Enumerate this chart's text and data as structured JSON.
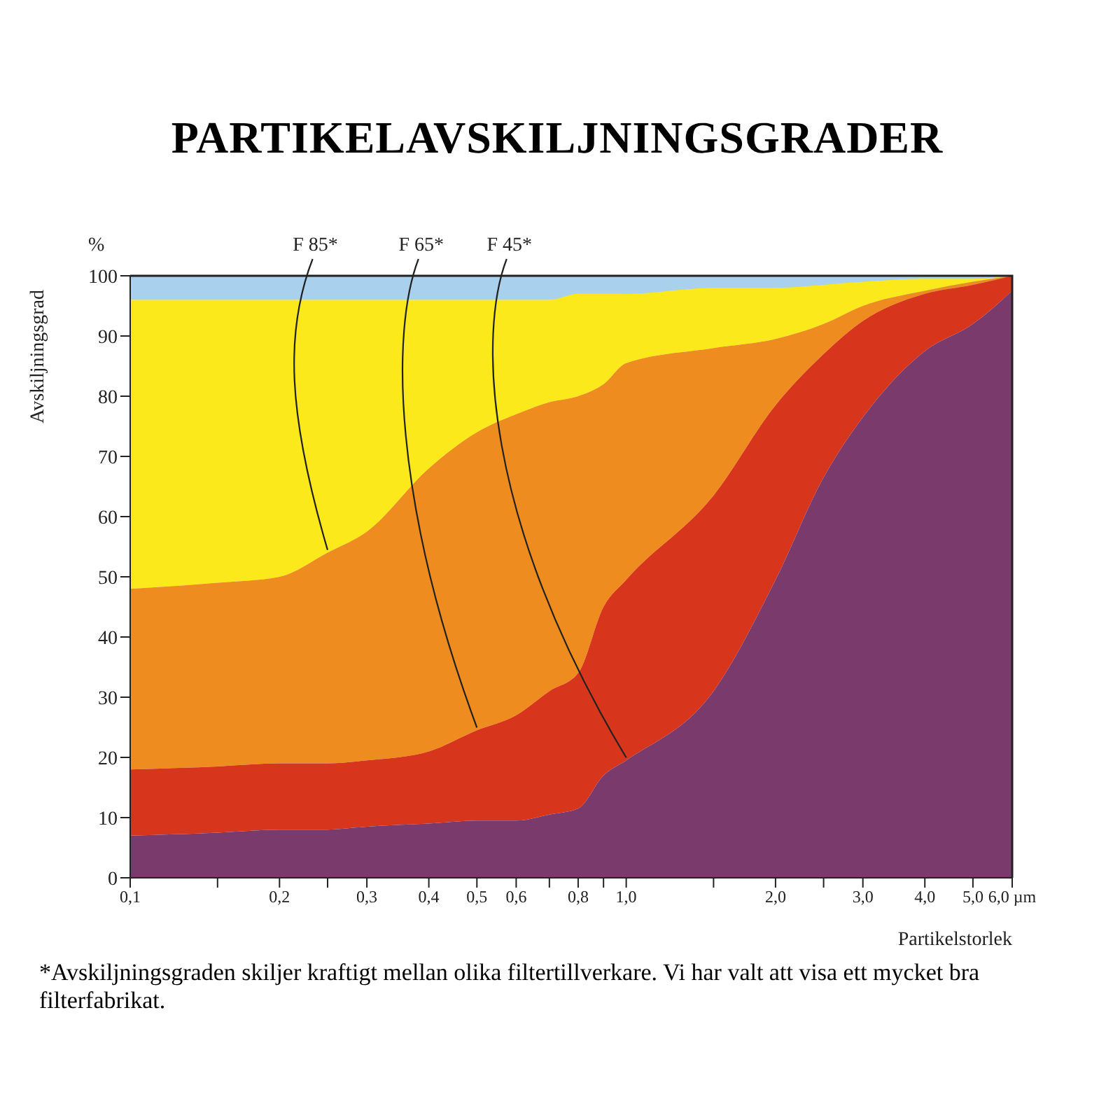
{
  "chart_data": {
    "type": "area",
    "title": "PARTIKELAVSKILJNINGSGRADER",
    "xlabel": "Partikelstorlek",
    "ylabel": "Avskiljningsgrad",
    "annotations": [
      "%",
      "*Avskiljningsgraden skiljer kraftigt mellan olika filtertillverkare. Vi har valt att visa ett mycket bra filterfabrikat."
    ],
    "x": [
      0.1,
      0.15,
      0.2,
      0.25,
      0.3,
      0.4,
      0.5,
      0.6,
      0.7,
      0.8,
      0.9,
      1.0,
      1.5,
      2.0,
      2.5,
      3.0,
      4.0,
      5.0,
      6.0
    ],
    "series": [
      {
        "color": "#fbe91c",
        "values": [
          96,
          96,
          96,
          96,
          96,
          96,
          96,
          96,
          96,
          97,
          97,
          97,
          98,
          98,
          98.5,
          99,
          99.5,
          99.5,
          100
        ]
      },
      {
        "name": "F 85*",
        "color": "#ee8c1f",
        "values": [
          48,
          49,
          50,
          54,
          57.5,
          68,
          74,
          77,
          79,
          80,
          82,
          85.5,
          88,
          89.5,
          92,
          95,
          97.5,
          99,
          100
        ]
      },
      {
        "name": "F 65*",
        "color": "#d8361c",
        "values": [
          18,
          18.5,
          19,
          19,
          19.5,
          21,
          24.5,
          27,
          31,
          34,
          45,
          49.5,
          63.5,
          78.5,
          87,
          92.5,
          97,
          98.5,
          100
        ]
      },
      {
        "name": "F 45*",
        "color": "#7a3a6b",
        "values": [
          7,
          7.5,
          8,
          8,
          8.5,
          9,
          9.5,
          9.5,
          10.5,
          11.5,
          17,
          19.5,
          31,
          49.5,
          66.5,
          76.5,
          87.5,
          92,
          97.5
        ]
      }
    ],
    "bands": [
      {
        "axis": "y",
        "from": 96,
        "to": 100,
        "color": "#a9d0ec"
      }
    ],
    "log": "x",
    "xlim": [
      0.1,
      6
    ],
    "ylim": [
      0,
      100
    ],
    "xticks": [
      {
        "value": 0.1,
        "label": "0,1"
      },
      {
        "value": 0.15,
        "label": null
      },
      {
        "value": 0.2,
        "label": "0,2"
      },
      {
        "value": 0.25,
        "label": null
      },
      {
        "value": 0.3,
        "label": "0,3"
      },
      {
        "value": 0.4,
        "label": "0,4"
      },
      {
        "value": 0.5,
        "label": "0,5"
      },
      {
        "value": 0.6,
        "label": "0,6"
      },
      {
        "value": 0.7,
        "label": null
      },
      {
        "value": 0.8,
        "label": "0,8"
      },
      {
        "value": 0.9,
        "label": null
      },
      {
        "value": 1.0,
        "label": "1,0"
      },
      {
        "value": 1.5,
        "label": null
      },
      {
        "value": 2.0,
        "label": "2,0"
      },
      {
        "value": 2.5,
        "label": null
      },
      {
        "value": 3.0,
        "label": "3,0"
      },
      {
        "value": 4.0,
        "label": "4,0"
      },
      {
        "value": 5.0,
        "label": "5,0"
      },
      {
        "value": 6.0,
        "label": "6,0 µm"
      }
    ],
    "yticks": [
      0,
      10,
      20,
      30,
      40,
      50,
      60,
      70,
      80,
      90,
      100
    ],
    "grid": false,
    "legend": false
  }
}
